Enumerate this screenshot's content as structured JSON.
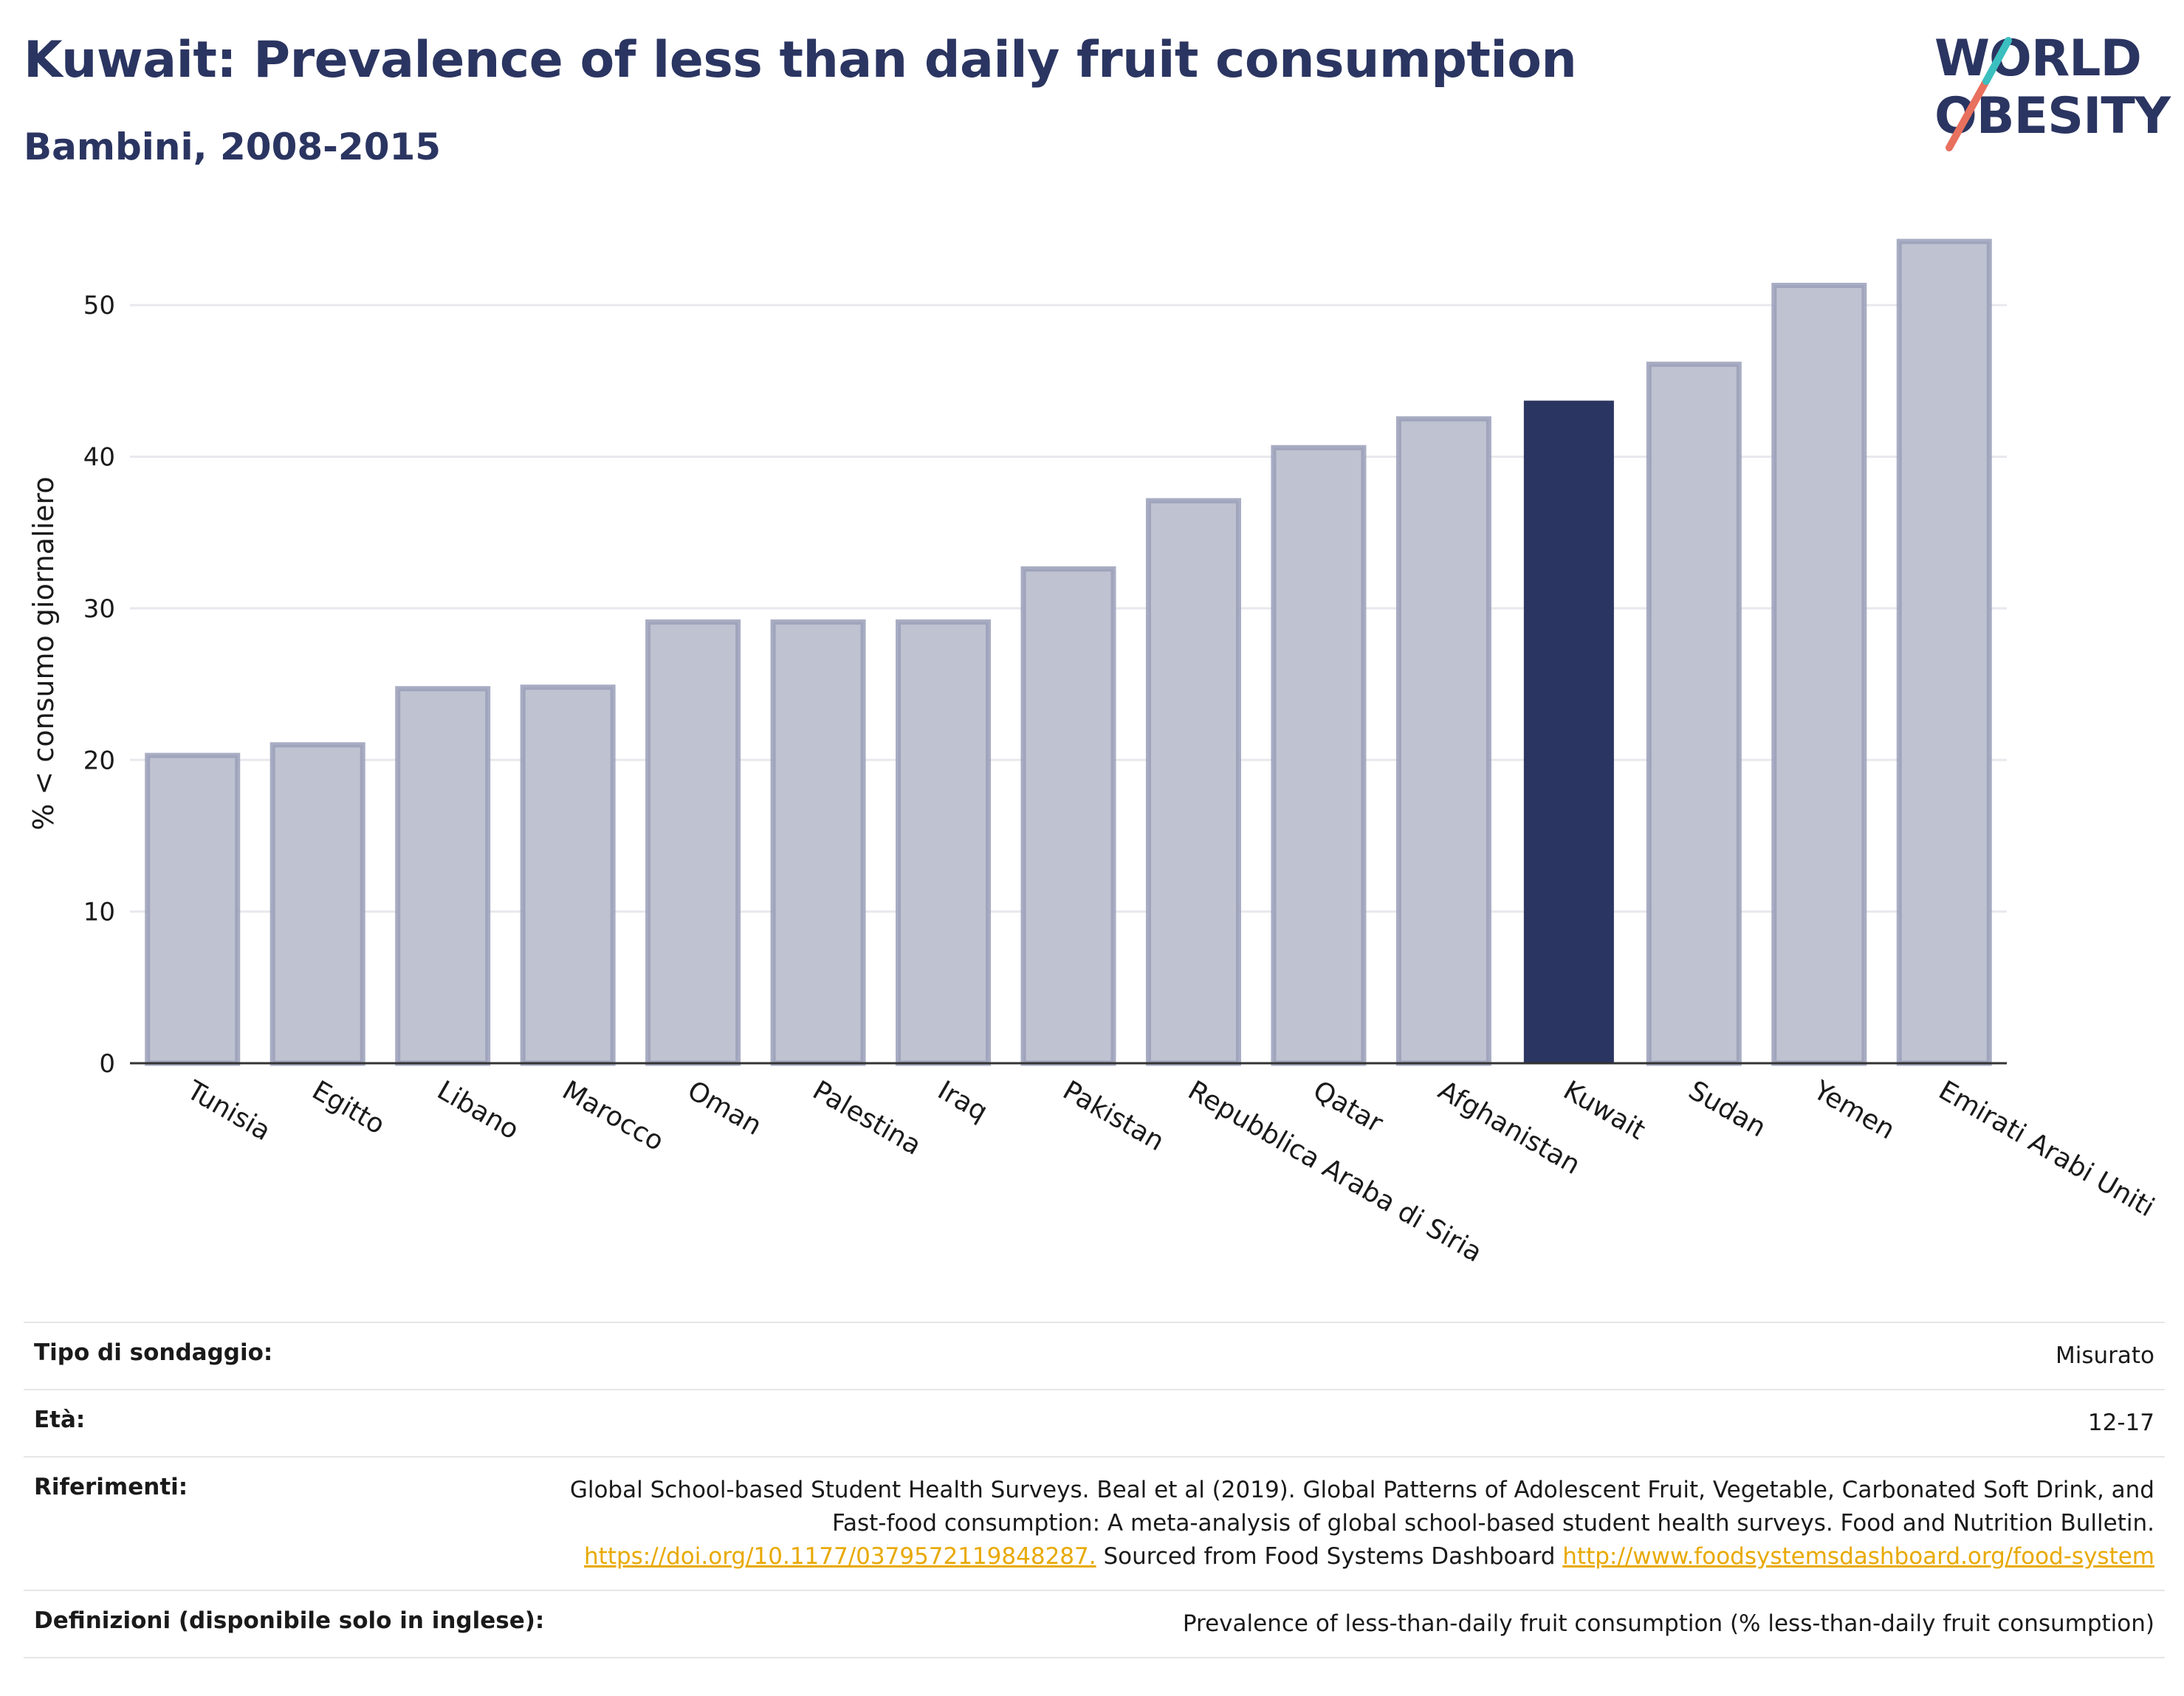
{
  "header": {
    "title": "Kuwait: Prevalence of less than daily fruit consumption",
    "subtitle": "Bambini, 2008-2015"
  },
  "logo": {
    "line1": "WORLD",
    "line2": "OBESITY",
    "colors": {
      "slash_red": "#e8705e",
      "slash_teal": "#3bbfbf"
    }
  },
  "chart_data": {
    "type": "bar",
    "ylabel": "% < consumo giornaliero",
    "ylim": [
      0,
      56
    ],
    "yticks": [
      0,
      10,
      20,
      30,
      40,
      50
    ],
    "grid": true,
    "highlight": "Kuwait",
    "colors": {
      "default": "#bfc2d0",
      "default_border": "#9a9fb8",
      "highlight": "#2b3561"
    },
    "categories": [
      "Tunisia",
      "Egitto",
      "Libano",
      "Marocco",
      "Oman",
      "Palestina",
      "Iraq",
      "Pakistan",
      "Repubblica Araba di Siria",
      "Qatar",
      "Afghanistan",
      "Kuwait",
      "Sudan",
      "Yemen",
      "Emirati Arabi Uniti"
    ],
    "values": [
      20.3,
      21.0,
      24.7,
      24.8,
      29.1,
      29.1,
      29.1,
      32.6,
      37.1,
      40.6,
      42.5,
      43.7,
      46.1,
      51.3,
      54.2
    ]
  },
  "info": {
    "survey_label": "Tipo di sondaggio:",
    "survey_value": "Misurato",
    "age_label": "Età:",
    "age_value": "12-17",
    "refs_label": "Riferimenti:",
    "refs_text1": "Global School-based Student Health Surveys. Beal et al (2019). Global Patterns of Adolescent Fruit, Vegetable, Carbonated Soft Drink, and Fast-food consumption: A meta-analysis of global school-based student health surveys. Food and Nutrition Bulletin. ",
    "refs_link1": "https://doi.org/10.1177/0379572119848287.",
    "refs_text2": " Sourced from Food Systems Dashboard ",
    "refs_link2": "http://www.foodsystemsdashboard.org/food-system",
    "defs_label": "Definizioni (disponibile solo in inglese):",
    "defs_value": "Prevalence of less-than-daily fruit consumption (% less-than-daily fruit consumption)"
  }
}
